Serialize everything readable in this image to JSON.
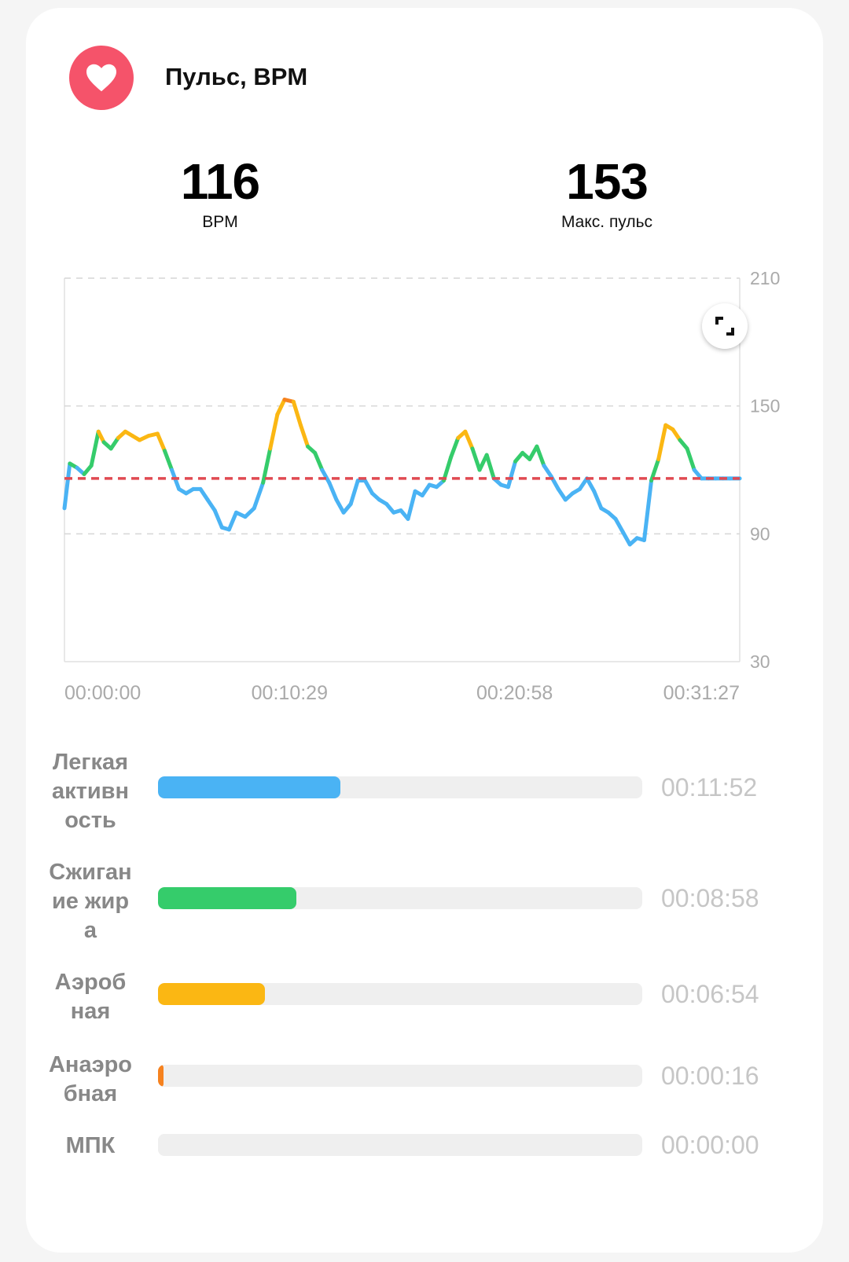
{
  "header": {
    "title": "Пульс, BPM",
    "icon": "heart-icon",
    "icon_color": "#f5536a"
  },
  "stats": [
    {
      "value": "116",
      "label": "BPM"
    },
    {
      "value": "153",
      "label": "Макс. пульс"
    }
  ],
  "chart_data": {
    "type": "line",
    "ylim": [
      30,
      210
    ],
    "yticks": [
      "210",
      "150",
      "90",
      "30"
    ],
    "xticks": [
      "00:00:00",
      "00:10:29",
      "00:20:58",
      "00:31:27"
    ],
    "duration_s": 1887,
    "reference_line": {
      "value": 116,
      "color": "#e04a52",
      "style": "dashed"
    },
    "grid": true,
    "zone_colors": {
      "light": "#4ab3f4",
      "fat_burn": "#35cc6b",
      "aerobic": "#fbb713",
      "anaerobic": "#f6821f"
    },
    "zone_thresholds": [
      120,
      133,
      150
    ],
    "series": [
      {
        "t": [
          0,
          15,
          35,
          55,
          75,
          95,
          110,
          130,
          150,
          170,
          190,
          210,
          235,
          260,
          280,
          300,
          320,
          340,
          360,
          380,
          400,
          420,
          440,
          460,
          480,
          505,
          530,
          555,
          575,
          595,
          615,
          640,
          660,
          680,
          700,
          720,
          740,
          760,
          780,
          800,
          820,
          840,
          860,
          880,
          900,
          920,
          940,
          960,
          980,
          1000,
          1020,
          1040,
          1060,
          1080,
          1100,
          1120,
          1140,
          1160,
          1180,
          1200,
          1220,
          1240,
          1260,
          1280,
          1300,
          1320,
          1340,
          1360,
          1380,
          1400,
          1420,
          1440,
          1460,
          1480,
          1500,
          1520,
          1540,
          1560,
          1580,
          1600,
          1620,
          1640,
          1660,
          1680,
          1700,
          1720,
          1740,
          1760,
          1780,
          1800,
          1820,
          1840,
          1860,
          1887
        ],
        "bpm": [
          102,
          123,
          121,
          118,
          122,
          138,
          133,
          130,
          135,
          138,
          136,
          134,
          136,
          137,
          129,
          120,
          111,
          109,
          111,
          111,
          106,
          101,
          93,
          92,
          100,
          98,
          102,
          114,
          130,
          146,
          153,
          152,
          141,
          131,
          128,
          120,
          114,
          106,
          100,
          104,
          115,
          115,
          109,
          106,
          104,
          100,
          101,
          97,
          110,
          108,
          113,
          112,
          115,
          126,
          135,
          138,
          130,
          120,
          127,
          116,
          113,
          112,
          124,
          128,
          125,
          131,
          122,
          117,
          111,
          106,
          109,
          111,
          116,
          110,
          102,
          100,
          97,
          91,
          85,
          88,
          87,
          115,
          125,
          141,
          139,
          134,
          130,
          120,
          116,
          116,
          116,
          116,
          116,
          116
        ]
      }
    ]
  },
  "zones": [
    {
      "name": "Легкая активность",
      "time": "00:11:52",
      "fraction": 0.377,
      "color": "#4ab3f4"
    },
    {
      "name": "Сжигание жира",
      "time": "00:08:58",
      "fraction": 0.285,
      "color": "#35cc6b"
    },
    {
      "name": "Аэробная",
      "time": "00:06:54",
      "fraction": 0.22,
      "color": "#fbb713"
    },
    {
      "name": "Анаэробная",
      "time": "00:00:16",
      "fraction": 0.01,
      "color": "#f6821f"
    },
    {
      "name": "МПК",
      "time": "00:00:00",
      "fraction": 0.0,
      "color": "#e8e8e8"
    }
  ]
}
